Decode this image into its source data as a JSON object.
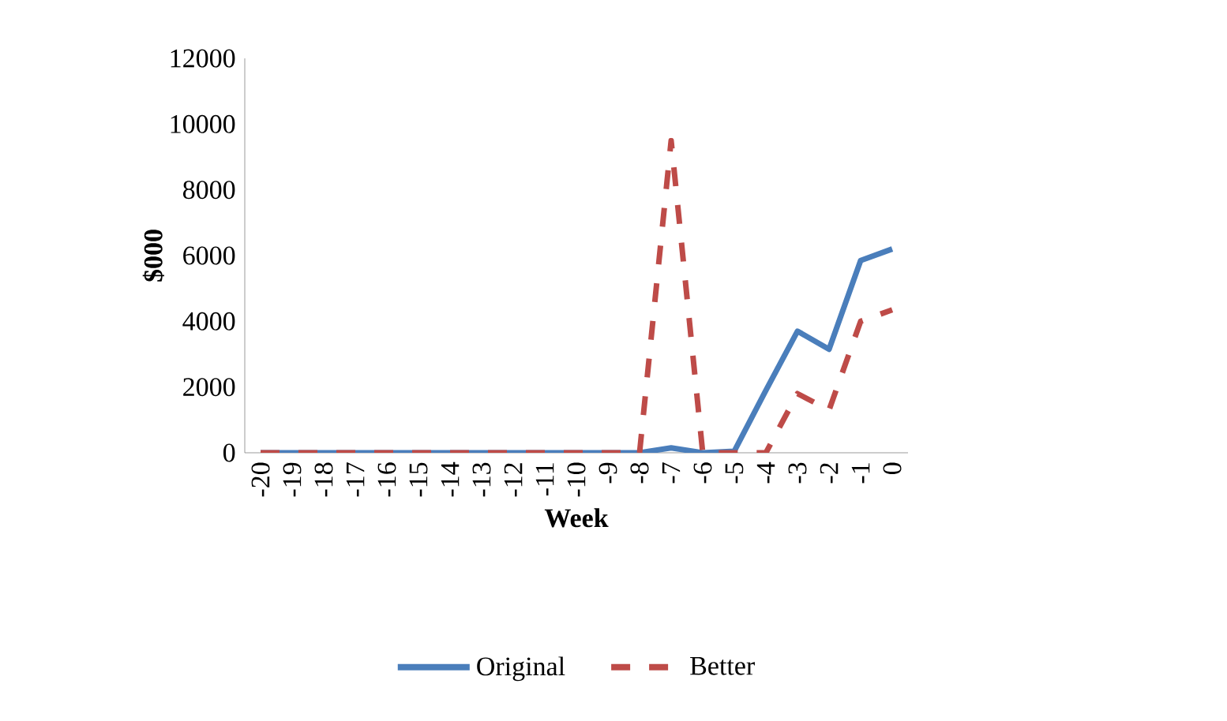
{
  "chart_data": {
    "type": "line",
    "xlabel": "Week",
    "ylabel": "$000",
    "categories": [
      "-20",
      "-19",
      "-18",
      "-17",
      "-16",
      "-15",
      "-14",
      "-13",
      "-12",
      "-11",
      "-10",
      "-9",
      "-8",
      "-7",
      "-6",
      "-5",
      "-4",
      "-3",
      "-2",
      "-1",
      "0"
    ],
    "series": [
      {
        "name": "Original",
        "color": "#4a7ebb",
        "line_style": "solid",
        "values": [
          0,
          0,
          0,
          0,
          0,
          0,
          0,
          0,
          0,
          0,
          0,
          0,
          0,
          150,
          0,
          50,
          1900,
          3700,
          3150,
          5850,
          6200
        ]
      },
      {
        "name": "Better",
        "color": "#be4b48",
        "line_style": "dashed",
        "values": [
          0,
          0,
          0,
          0,
          0,
          0,
          0,
          0,
          0,
          0,
          0,
          0,
          0,
          9500,
          0,
          0,
          0,
          1800,
          1300,
          4000,
          4350
        ]
      }
    ],
    "ylim": [
      0,
      12000
    ],
    "yticks": [
      0,
      2000,
      4000,
      6000,
      8000,
      10000,
      12000
    ],
    "grid": false,
    "legend": "bottom",
    "marker": "none"
  }
}
